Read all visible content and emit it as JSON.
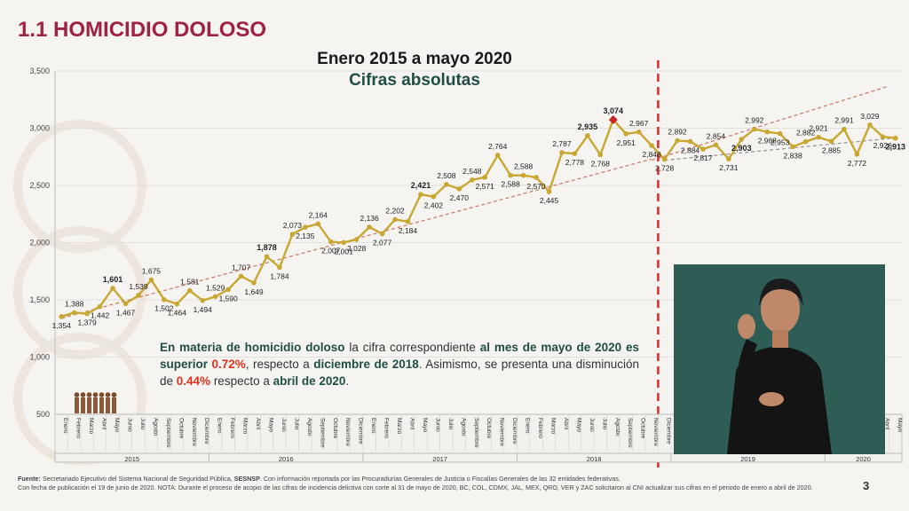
{
  "slide": {
    "title": "1.1 HOMICIDIO DOLOSO",
    "page_number": "3"
  },
  "chart_data": {
    "type": "line",
    "title": "Enero 2015 a mayo 2020",
    "subtitle": "Cifras absolutas",
    "ylim": [
      500,
      3500
    ],
    "yticks": [
      "500",
      "1,000",
      "1,500",
      "2,000",
      "2,500",
      "3,000",
      "3,500"
    ],
    "line_color": "#c8a732",
    "max_point_color": "#c62828",
    "trend_color": "#c87e6c",
    "divider_color": "#d32f2f",
    "months": [
      "Enero",
      "Febrero",
      "Marzo",
      "Abril",
      "Mayo",
      "Junio",
      "Julio",
      "Agosto",
      "Septiembre",
      "Octubre",
      "Noviembre",
      "Diciembre"
    ],
    "years": [
      "2015",
      "2016",
      "2017",
      "2018",
      "2019",
      "2020"
    ],
    "last_months_labels": [
      "Abril",
      "Mayo"
    ],
    "values": [
      1354,
      1388,
      1379,
      1442,
      1601,
      1467,
      1539,
      1675,
      1502,
      1464,
      1581,
      1494,
      1529,
      1590,
      1707,
      1649,
      1878,
      1784,
      2073,
      2135,
      2164,
      2007,
      2001,
      2028,
      2136,
      2077,
      2202,
      2184,
      2421,
      2402,
      2508,
      2470,
      2548,
      2571,
      2764,
      2588,
      2588,
      2570,
      2445,
      2787,
      2778,
      2935,
      2768,
      3074,
      2951,
      2967,
      2848,
      2728,
      2892,
      2884,
      2817,
      2854,
      2731,
      2903,
      2992,
      2968,
      2953,
      2838,
      2882,
      2921,
      2885,
      2991,
      2772,
      3029,
      2926,
      2913
    ],
    "value_labels": [
      "1,354",
      "1,388",
      "1,379",
      "1,442",
      "1,601",
      "1,467",
      "1,539",
      "1,675",
      "1,502",
      "1,464",
      "1,581",
      "1,494",
      "1,529",
      "1,590",
      "1,707",
      "1,649",
      "1,878",
      "1,784",
      "2,073",
      "2,135",
      "2,164",
      "2,007",
      "2,001",
      "2,028",
      "2,136",
      "2,077",
      "2,202",
      "2,184",
      "2,421",
      "2,402",
      "2,508",
      "2,470",
      "2,548",
      "2,571",
      "2,764",
      "2,588",
      "2,588",
      "2,570",
      "2,445",
      "2,787",
      "2,778",
      "2,935",
      "2,768",
      "3,074",
      "2,951",
      "2,967",
      "2,848",
      "2,728",
      "2,892",
      "2,884",
      "2,817",
      "2,854",
      "2,731",
      "2,903",
      "2,992",
      "2,968",
      "2,953",
      "2,838",
      "2,882",
      "2,921",
      "2,885",
      "2,991",
      "2,772",
      "3,029",
      "2,926",
      "2,913"
    ],
    "bold_labels": [
      "1,601",
      "1,878",
      "2,421",
      "2,935",
      "3,074",
      "2,903",
      "2,913"
    ],
    "max_label": "3,074",
    "divider_after_month": "Noviembre 2018",
    "trend_before": [
      1340,
      2730
    ],
    "trend_after": [
      2720,
      2915
    ]
  },
  "note": {
    "p1": "En materia de homicidio doloso",
    "p2": " la cifra correspondiente ",
    "p3": "al mes de mayo de 2020 es superior",
    "p4": "0.72%",
    "p5": ", respecto a ",
    "p6": "diciembre de 2018",
    "p7": ". Asimismo, se presenta una disminución de ",
    "p8": "0.44%",
    "p9": " respecto a ",
    "p10": "abril de 2020",
    "p11": "."
  },
  "footer": {
    "label": "Fuente:",
    "text1": " Secretariado Ejecutivo del Sistema Nacional de Seguridad Pública, ",
    "sesnsp": "SESNSP",
    "text2": ". Con información reportada por las Procuradurías Generales de Justicia o Fiscalías Generales de las 32 entidades federativas.",
    "line2": "Con fecha de publicación el 19 de junio de 2020. NOTA: Durante el proceso de acopio de las cifras de incidencia delictiva con corte al 31 de mayo de 2020, BC, COL, CDMX, JAL, MEX, QRO, VER y ZAC solicitaron al CNI actualizar sus cifras en el periodo de enero a abril de 2020."
  }
}
